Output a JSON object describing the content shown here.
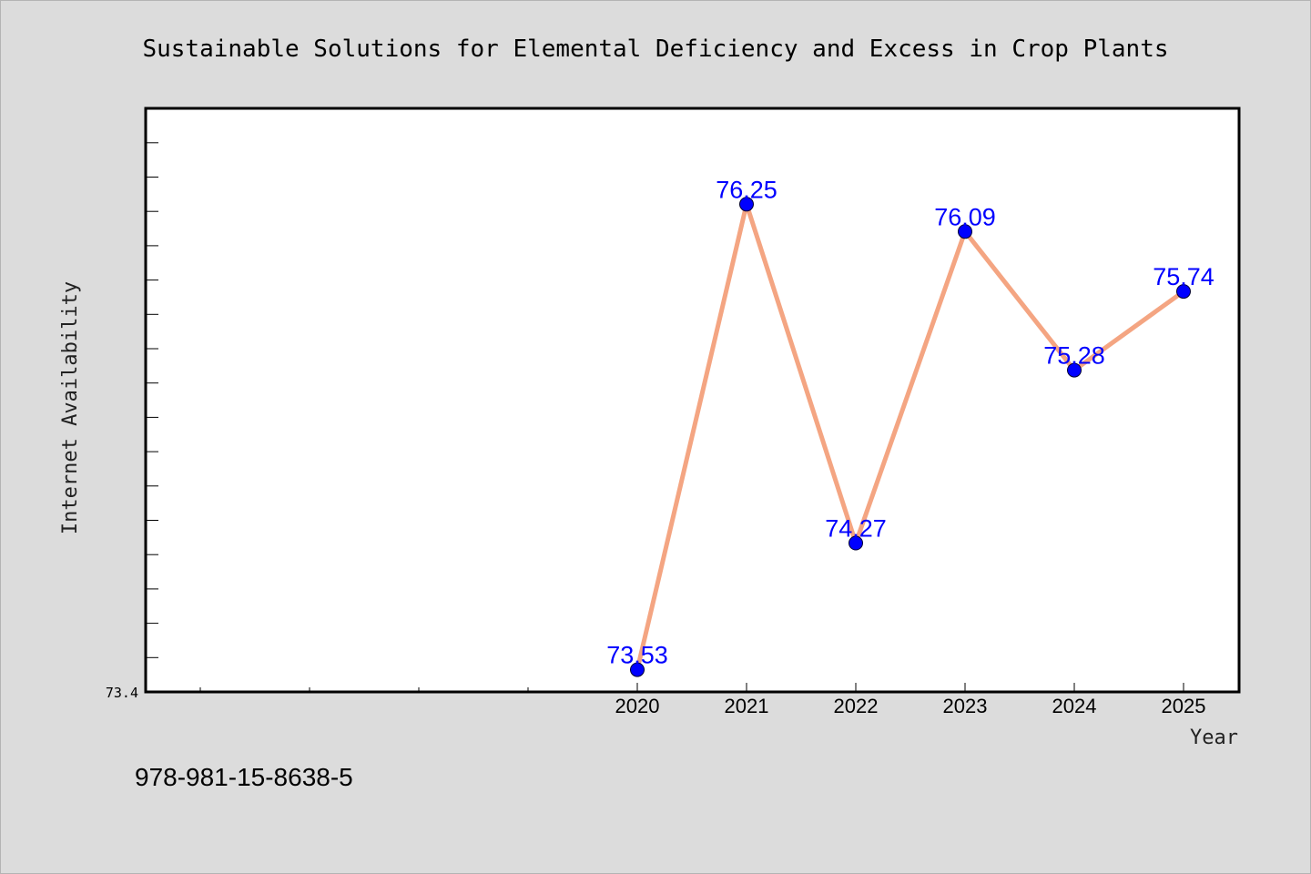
{
  "page": {
    "title": "Sustainable Solutions for Elemental Deficiency and Excess in Crop Plants",
    "footer_code": "978-981-15-8638-5"
  },
  "colors": {
    "background": "#dcdcdc",
    "plot_area": "#ffffff",
    "line": "#f4a582",
    "marker": "#0000ff",
    "data_label": "#0000ff"
  },
  "chart_data": {
    "type": "line",
    "title": "Sustainable Solutions for Elemental Deficiency and Excess in Crop Plants",
    "xlabel": "Year",
    "ylabel": "Internet Availability",
    "categories": [
      "2020",
      "2021",
      "2022",
      "2023",
      "2024",
      "2025"
    ],
    "series": [
      {
        "values": [
          73.53,
          76.25,
          74.27,
          76.09,
          75.28,
          75.74
        ]
      }
    ],
    "data_labels": [
      "73.53",
      "76.25",
      "74.27",
      "76.09",
      "75.28",
      "75.74"
    ],
    "y_tick_labels": [
      "73.4"
    ],
    "ylim": [
      73.4,
      76.81
    ],
    "grid": false,
    "legend": "none"
  }
}
